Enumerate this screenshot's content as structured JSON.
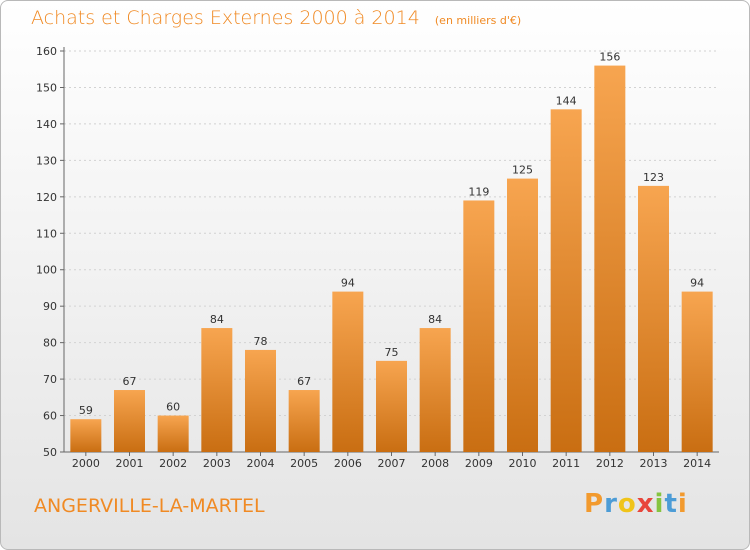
{
  "title": "Achats et Charges Externes 2000 à 2014",
  "subtitle": "(en milliers d'€)",
  "place": "ANGERVILLE-LA-MARTEL",
  "logo": {
    "text": "Proxiti",
    "letters": [
      {
        "ch": "P",
        "color": "#f29a2e"
      },
      {
        "ch": "r",
        "color": "#4c9cd6"
      },
      {
        "ch": "o",
        "color": "#f0c419"
      },
      {
        "ch": "x",
        "color": "#e8463b"
      },
      {
        "ch": "i",
        "color": "#86c440"
      },
      {
        "ch": "t",
        "color": "#4c9cd6"
      },
      {
        "ch": "i",
        "color": "#f29a2e"
      }
    ]
  },
  "colors": {
    "bar_light": "#f7a550",
    "bar_dark": "#c96e12",
    "accent": "#f08a24"
  },
  "chart_data": {
    "type": "bar",
    "categories": [
      "2000",
      "2001",
      "2002",
      "2003",
      "2004",
      "2005",
      "2006",
      "2007",
      "2008",
      "2009",
      "2010",
      "2011",
      "2012",
      "2013",
      "2014"
    ],
    "values": [
      59,
      67,
      60,
      84,
      78,
      67,
      94,
      75,
      84,
      119,
      125,
      144,
      156,
      123,
      94
    ],
    "ylim": [
      50,
      160
    ],
    "yticks": [
      50,
      60,
      70,
      80,
      90,
      100,
      110,
      120,
      130,
      140,
      150,
      160
    ],
    "grid": true
  }
}
